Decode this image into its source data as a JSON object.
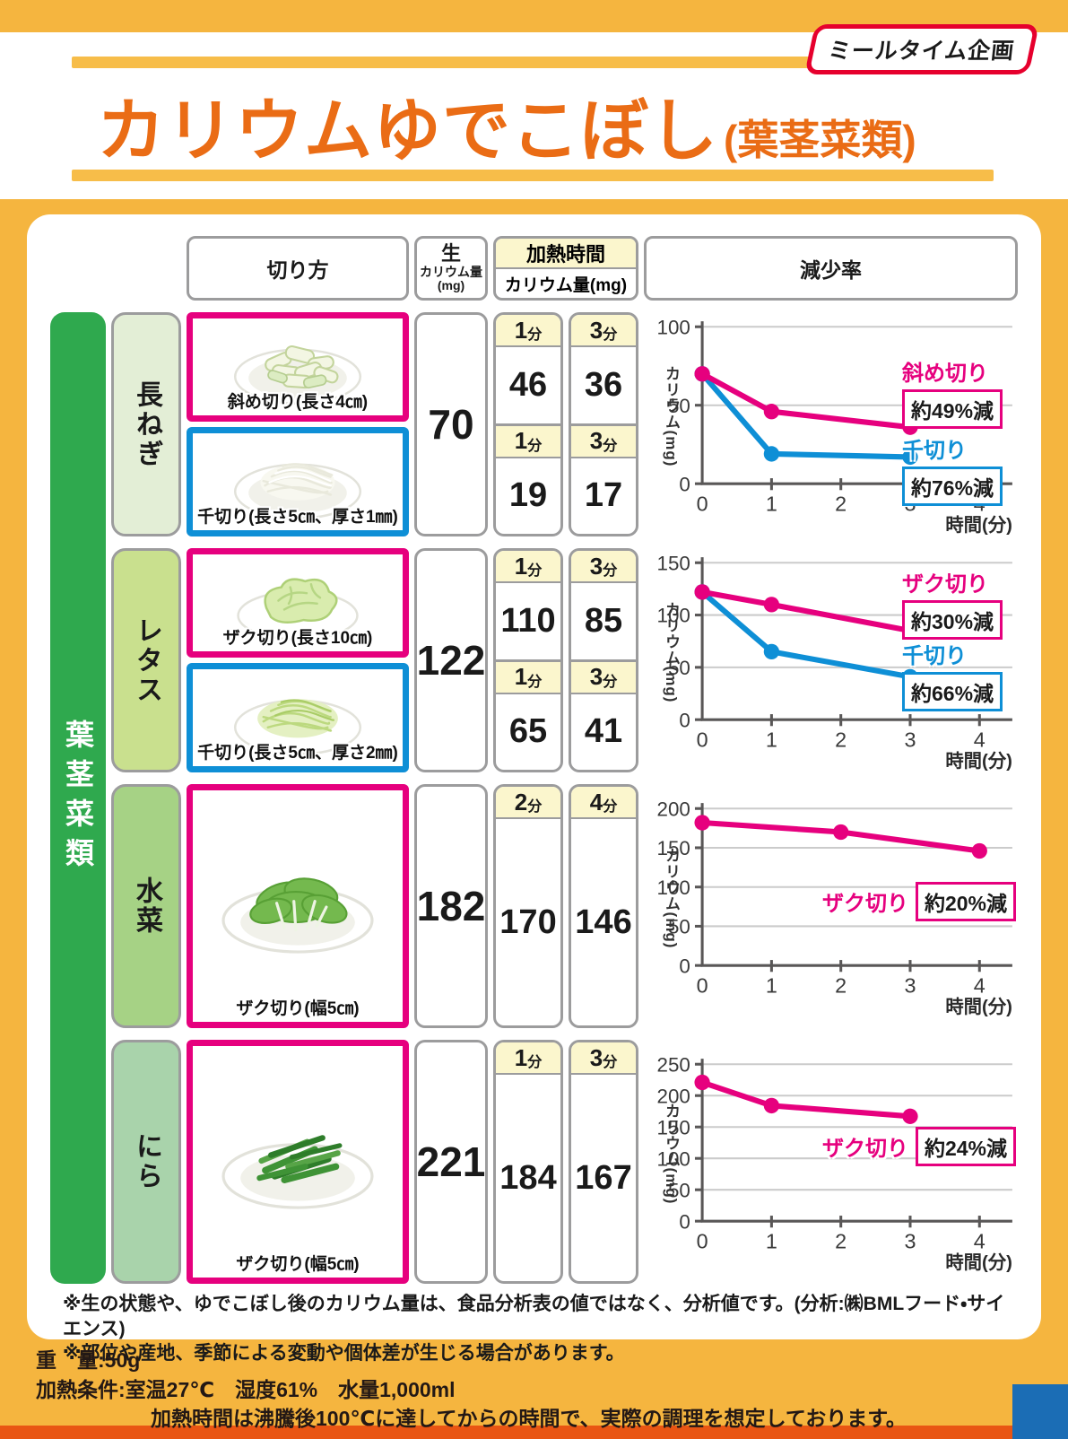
{
  "page": {
    "badge": "ミールタイム企画",
    "title": "カリウムゆでこぼし",
    "title_suffix": "(葉茎菜類)",
    "title_color": "#ea6c15",
    "background_color": "#f5b53f",
    "accent_pink": "#e6007e",
    "accent_blue": "#0e8fd6",
    "green_bar_color": "#2fa94e",
    "bottom_bar_color": "#e95513",
    "corner_square_color": "#1b6db5"
  },
  "table": {
    "category": "葉茎菜類",
    "headers": {
      "cut": "切り方",
      "raw_top": "生",
      "raw_mid": "カリウム量",
      "raw_bottom": "(mg)",
      "heat_time": "加熱時間",
      "heat_amount": "カリウム量(mg)",
      "reduction": "減少率"
    },
    "rows": [
      {
        "name": "長ねぎ",
        "label_color": "#e3eed6",
        "raw": "70",
        "cuts": [
          {
            "label": "斜め切り(長さ4㎝)",
            "border": "#e6007e",
            "times": [
              {
                "num": "1",
                "unit": "分",
                "value": "46"
              },
              {
                "num": "3",
                "unit": "分",
                "value": "36"
              }
            ]
          },
          {
            "label": "千切り(長さ5㎝、厚さ1㎜)",
            "border": "#0e8fd6",
            "times": [
              {
                "num": "1",
                "unit": "分",
                "value": "19"
              },
              {
                "num": "3",
                "unit": "分",
                "value": "17"
              }
            ]
          }
        ]
      },
      {
        "name": "レタス",
        "label_color": "#c9e08e",
        "raw": "122",
        "cuts": [
          {
            "label": "ザク切り(長さ10㎝)",
            "border": "#e6007e",
            "times": [
              {
                "num": "1",
                "unit": "分",
                "value": "110"
              },
              {
                "num": "3",
                "unit": "分",
                "value": "85"
              }
            ]
          },
          {
            "label": "千切り(長さ5㎝、厚さ2㎜)",
            "border": "#0e8fd6",
            "times": [
              {
                "num": "1",
                "unit": "分",
                "value": "65"
              },
              {
                "num": "3",
                "unit": "分",
                "value": "41"
              }
            ]
          }
        ]
      },
      {
        "name": "水菜",
        "label_color": "#a6d285",
        "raw": "182",
        "cuts": [
          {
            "label": "ザク切り(幅5㎝)",
            "border": "#e6007e",
            "times": [
              {
                "num": "2",
                "unit": "分",
                "value": "170"
              },
              {
                "num": "4",
                "unit": "分",
                "value": "146"
              }
            ]
          }
        ]
      },
      {
        "name": "にら",
        "label_color": "#a9d3ab",
        "raw": "221",
        "cuts": [
          {
            "label": "ザク切り(幅5㎝)",
            "border": "#e6007e",
            "times": [
              {
                "num": "1",
                "unit": "分",
                "value": "184"
              },
              {
                "num": "3",
                "unit": "分",
                "value": "167"
              }
            ]
          }
        ]
      }
    ]
  },
  "chart_data": [
    {
      "type": "line",
      "vegetable": "長ねぎ",
      "title": "",
      "x_label": "時間(分)",
      "y_label": "カリウム(mg)",
      "xlim": [
        0,
        4.5
      ],
      "ylim": [
        0,
        100
      ],
      "x_ticks": [
        0,
        1,
        2,
        3,
        4
      ],
      "y_ticks": [
        0,
        50,
        100
      ],
      "grid": true,
      "legend_layout": "stacked-right",
      "series": [
        {
          "name": "斜め切り",
          "color": "#e6007e",
          "x": [
            0,
            1,
            3
          ],
          "y": [
            70,
            46,
            36
          ],
          "reduction_label": "約49%減"
        },
        {
          "name": "千切り",
          "color": "#0e8fd6",
          "x": [
            0,
            1,
            3
          ],
          "y": [
            70,
            19,
            17
          ],
          "reduction_label": "約76%減"
        }
      ]
    },
    {
      "type": "line",
      "vegetable": "レタス",
      "title": "",
      "x_label": "時間(分)",
      "y_label": "カリウム(mg)",
      "xlim": [
        0,
        4.5
      ],
      "ylim": [
        0,
        150
      ],
      "x_ticks": [
        0,
        1,
        2,
        3,
        4
      ],
      "y_ticks": [
        0,
        50,
        100,
        150
      ],
      "grid": true,
      "legend_layout": "stacked-right",
      "series": [
        {
          "name": "ザク切り",
          "color": "#e6007e",
          "x": [
            0,
            1,
            3
          ],
          "y": [
            122,
            110,
            85
          ],
          "reduction_label": "約30%減"
        },
        {
          "name": "千切り",
          "color": "#0e8fd6",
          "x": [
            0,
            1,
            3
          ],
          "y": [
            122,
            65,
            41
          ],
          "reduction_label": "約66%減"
        }
      ]
    },
    {
      "type": "line",
      "vegetable": "水菜",
      "title": "",
      "x_label": "時間(分)",
      "y_label": "カリウム(mg)",
      "xlim": [
        0,
        4.5
      ],
      "ylim": [
        0,
        200
      ],
      "x_ticks": [
        0,
        1,
        2,
        3,
        4
      ],
      "y_ticks": [
        0,
        50,
        100,
        150,
        200
      ],
      "grid": true,
      "legend_layout": "inline-right",
      "series": [
        {
          "name": "ザク切り",
          "color": "#e6007e",
          "x": [
            0,
            2,
            4
          ],
          "y": [
            182,
            170,
            146
          ],
          "reduction_label": "約20%減"
        }
      ]
    },
    {
      "type": "line",
      "vegetable": "にら",
      "title": "",
      "x_label": "時間(分)",
      "y_label": "カリウム(mg)",
      "xlim": [
        0,
        4.5
      ],
      "ylim": [
        0,
        250
      ],
      "x_ticks": [
        0,
        1,
        2,
        3,
        4
      ],
      "y_ticks": [
        0,
        50,
        100,
        150,
        200,
        250
      ],
      "grid": true,
      "legend_layout": "inline-right",
      "series": [
        {
          "name": "ザク切り",
          "color": "#e6007e",
          "x": [
            0,
            1,
            3
          ],
          "y": [
            221,
            184,
            167
          ],
          "reduction_label": "約24%減"
        }
      ]
    }
  ],
  "footnotes": [
    "※生の状態や、ゆでこぼし後のカリウム量は、食品分析表の値ではなく、分析値です。(分析:㈱BMLフード・サイエンス)",
    "※部位や産地、季節による変動や個体差が生じる場合があります。"
  ],
  "conditions": {
    "weight": "重　量:50g",
    "heating": "加熱条件:室温27℃　湿度61%　水量1,000ml",
    "note": "加熱時間は沸騰後100℃に達してからの時間で、実際の調理を想定しております。"
  }
}
